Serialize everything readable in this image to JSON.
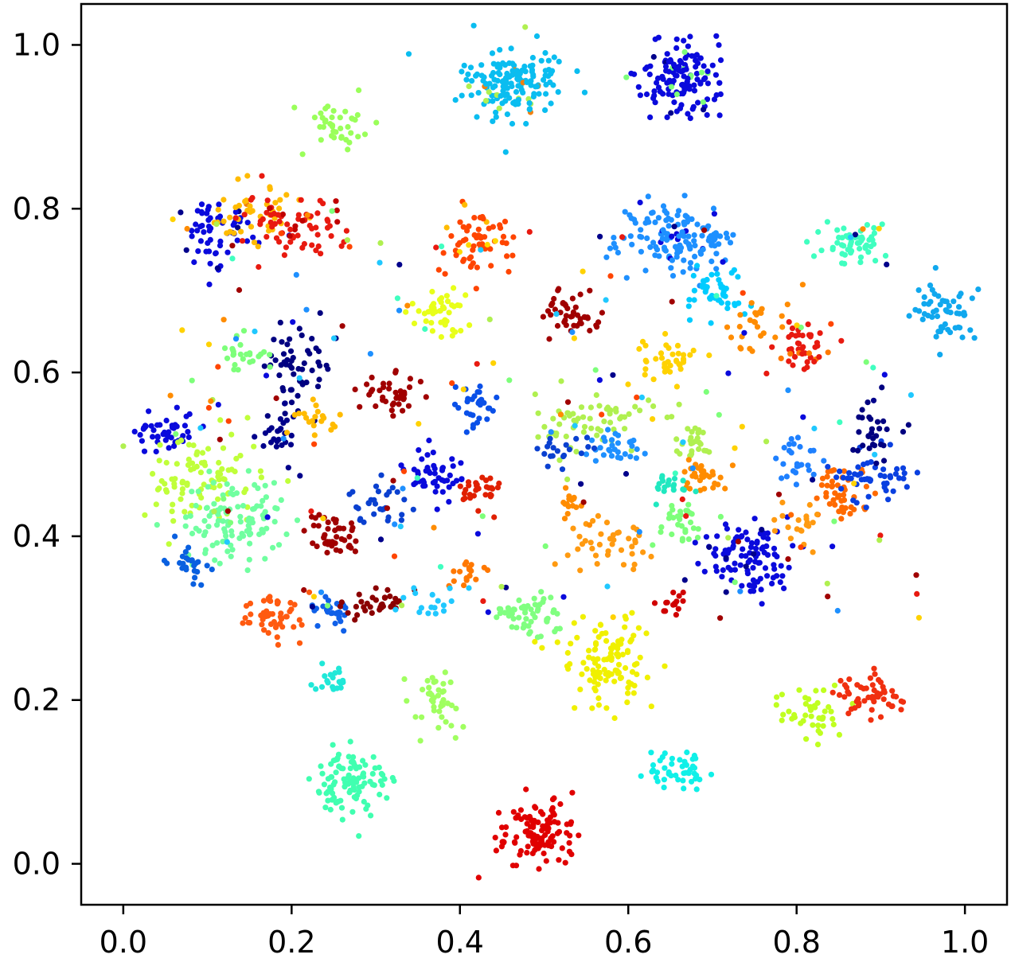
{
  "chart_data": {
    "type": "scatter",
    "title": "",
    "xlabel": "",
    "ylabel": "",
    "xlim": [
      -0.05,
      1.05
    ],
    "ylim": [
      -0.05,
      1.05
    ],
    "xticks": [
      "0.0",
      "0.2",
      "0.4",
      "0.6",
      "0.8",
      "1.0"
    ],
    "yticks": [
      "0.0",
      "0.2",
      "0.4",
      "0.6",
      "0.8",
      "1.0"
    ],
    "xtick_values": [
      0.0,
      0.2,
      0.4,
      0.6,
      0.8,
      1.0
    ],
    "ytick_values": [
      0.0,
      0.2,
      0.4,
      0.6,
      0.8,
      1.0
    ],
    "grid": false,
    "colormap": "jet",
    "clusters": [
      {
        "x": 0.465,
        "y": 0.958,
        "spread": [
          0.03,
          0.022
        ],
        "n": 160,
        "color": "#0abdf0",
        "noise": [
          "#f08010",
          "#b0f050"
        ]
      },
      {
        "x": 0.665,
        "y": 0.958,
        "spread": [
          0.025,
          0.02
        ],
        "n": 140,
        "color": "#0a0adc",
        "noise": [
          "#00008b",
          "#7dff7a"
        ]
      },
      {
        "x": 0.255,
        "y": 0.9,
        "spread": [
          0.018,
          0.016
        ],
        "n": 40,
        "color": "#9aff5a",
        "noise": []
      },
      {
        "x": 0.11,
        "y": 0.77,
        "spread": [
          0.025,
          0.022
        ],
        "n": 60,
        "color": "#0a0adc",
        "noise": [
          "#00008b"
        ]
      },
      {
        "x": 0.16,
        "y": 0.795,
        "spread": [
          0.03,
          0.015
        ],
        "n": 45,
        "color": "#ffbb00",
        "noise": [
          "#f08010"
        ]
      },
      {
        "x": 0.21,
        "y": 0.78,
        "spread": [
          0.03,
          0.02
        ],
        "n": 70,
        "color": "#e81a10",
        "noise": [
          "#c00000"
        ]
      },
      {
        "x": 0.42,
        "y": 0.762,
        "spread": [
          0.022,
          0.02
        ],
        "n": 65,
        "color": "#ff4500",
        "noise": [
          "#ffd800",
          "#ffbb00"
        ]
      },
      {
        "x": 0.66,
        "y": 0.762,
        "spread": [
          0.035,
          0.022
        ],
        "n": 140,
        "color": "#1e90ff",
        "noise": [
          "#0a0adc"
        ]
      },
      {
        "x": 0.705,
        "y": 0.7,
        "spread": [
          0.02,
          0.02
        ],
        "n": 45,
        "color": "#00ccff",
        "noise": []
      },
      {
        "x": 0.868,
        "y": 0.758,
        "spread": [
          0.022,
          0.012
        ],
        "n": 55,
        "color": "#40ffc0",
        "noise": []
      },
      {
        "x": 0.978,
        "y": 0.672,
        "spread": [
          0.02,
          0.018
        ],
        "n": 55,
        "color": "#10a8ee",
        "noise": []
      },
      {
        "x": 0.378,
        "y": 0.675,
        "spread": [
          0.018,
          0.015
        ],
        "n": 45,
        "color": "#e8ff1a",
        "noise": []
      },
      {
        "x": 0.535,
        "y": 0.67,
        "spread": [
          0.02,
          0.015
        ],
        "n": 45,
        "color": "#a00000",
        "noise": []
      },
      {
        "x": 0.805,
        "y": 0.632,
        "spread": [
          0.02,
          0.014
        ],
        "n": 45,
        "color": "#e81a10",
        "noise": [
          "#ff7800"
        ]
      },
      {
        "x": 0.75,
        "y": 0.66,
        "spread": [
          0.02,
          0.015
        ],
        "n": 25,
        "color": "#ff8c00",
        "noise": []
      },
      {
        "x": 0.648,
        "y": 0.615,
        "spread": [
          0.015,
          0.014
        ],
        "n": 40,
        "color": "#ffd200",
        "noise": []
      },
      {
        "x": 0.21,
        "y": 0.608,
        "spread": [
          0.022,
          0.025
        ],
        "n": 55,
        "color": "#000080",
        "noise": []
      },
      {
        "x": 0.14,
        "y": 0.622,
        "spread": [
          0.015,
          0.012
        ],
        "n": 25,
        "color": "#7dff7a",
        "noise": []
      },
      {
        "x": 0.32,
        "y": 0.572,
        "spread": [
          0.02,
          0.012
        ],
        "n": 40,
        "color": "#a00000",
        "noise": []
      },
      {
        "x": 0.415,
        "y": 0.56,
        "spread": [
          0.016,
          0.014
        ],
        "n": 30,
        "color": "#0a50e8",
        "noise": []
      },
      {
        "x": 0.05,
        "y": 0.53,
        "spread": [
          0.018,
          0.015
        ],
        "n": 45,
        "color": "#0a0adc",
        "noise": []
      },
      {
        "x": 0.185,
        "y": 0.52,
        "spread": [
          0.012,
          0.016
        ],
        "n": 25,
        "color": "#00008b",
        "noise": []
      },
      {
        "x": 0.23,
        "y": 0.545,
        "spread": [
          0.012,
          0.01
        ],
        "n": 20,
        "color": "#ffbb00",
        "noise": []
      },
      {
        "x": 0.095,
        "y": 0.47,
        "spread": [
          0.035,
          0.03
        ],
        "n": 90,
        "color": "#c0ff3a",
        "noise": []
      },
      {
        "x": 0.13,
        "y": 0.42,
        "spread": [
          0.03,
          0.025
        ],
        "n": 110,
        "color": "#70ffa0",
        "noise": []
      },
      {
        "x": 0.075,
        "y": 0.37,
        "spread": [
          0.012,
          0.012
        ],
        "n": 25,
        "color": "#0a60e0",
        "noise": []
      },
      {
        "x": 0.248,
        "y": 0.402,
        "spread": [
          0.016,
          0.014
        ],
        "n": 45,
        "color": "#a00000",
        "noise": []
      },
      {
        "x": 0.305,
        "y": 0.44,
        "spread": [
          0.018,
          0.012
        ],
        "n": 30,
        "color": "#0a40d0",
        "noise": []
      },
      {
        "x": 0.37,
        "y": 0.475,
        "spread": [
          0.02,
          0.018
        ],
        "n": 45,
        "color": "#0a0adc",
        "noise": []
      },
      {
        "x": 0.425,
        "y": 0.455,
        "spread": [
          0.012,
          0.012
        ],
        "n": 30,
        "color": "#e02000",
        "noise": []
      },
      {
        "x": 0.56,
        "y": 0.54,
        "spread": [
          0.035,
          0.018
        ],
        "n": 65,
        "color": "#b0f050",
        "noise": []
      },
      {
        "x": 0.585,
        "y": 0.51,
        "spread": [
          0.015,
          0.012
        ],
        "n": 30,
        "color": "#1e90ff",
        "noise": []
      },
      {
        "x": 0.52,
        "y": 0.505,
        "spread": [
          0.02,
          0.008
        ],
        "n": 20,
        "color": "#0a40d0",
        "noise": []
      },
      {
        "x": 0.68,
        "y": 0.515,
        "spread": [
          0.012,
          0.01
        ],
        "n": 25,
        "color": "#b0f050",
        "noise": []
      },
      {
        "x": 0.69,
        "y": 0.475,
        "spread": [
          0.014,
          0.01
        ],
        "n": 30,
        "color": "#ff8c00",
        "noise": []
      },
      {
        "x": 0.645,
        "y": 0.46,
        "spread": [
          0.018,
          0.008
        ],
        "n": 20,
        "color": "#20e8c0",
        "noise": []
      },
      {
        "x": 0.66,
        "y": 0.415,
        "spread": [
          0.018,
          0.015
        ],
        "n": 30,
        "color": "#7dff7a",
        "noise": []
      },
      {
        "x": 0.53,
        "y": 0.44,
        "spread": [
          0.01,
          0.008
        ],
        "n": 15,
        "color": "#ff8c00",
        "noise": []
      },
      {
        "x": 0.58,
        "y": 0.392,
        "spread": [
          0.025,
          0.015
        ],
        "n": 40,
        "color": "#ff9a10",
        "noise": []
      },
      {
        "x": 0.745,
        "y": 0.375,
        "spread": [
          0.03,
          0.025
        ],
        "n": 110,
        "color": "#0a0adc",
        "noise": [
          "#00008b"
        ]
      },
      {
        "x": 0.8,
        "y": 0.495,
        "spread": [
          0.012,
          0.015
        ],
        "n": 25,
        "color": "#1e80ff",
        "noise": []
      },
      {
        "x": 0.85,
        "y": 0.45,
        "spread": [
          0.02,
          0.015
        ],
        "n": 45,
        "color": "#ff6a00",
        "noise": []
      },
      {
        "x": 0.89,
        "y": 0.47,
        "spread": [
          0.022,
          0.02
        ],
        "n": 50,
        "color": "#0a40e0",
        "noise": []
      },
      {
        "x": 0.89,
        "y": 0.525,
        "spread": [
          0.015,
          0.018
        ],
        "n": 30,
        "color": "#000080",
        "noise": []
      },
      {
        "x": 0.8,
        "y": 0.41,
        "spread": [
          0.015,
          0.012
        ],
        "n": 20,
        "color": "#ff9a10",
        "noise": []
      },
      {
        "x": 0.41,
        "y": 0.355,
        "spread": [
          0.01,
          0.008
        ],
        "n": 20,
        "color": "#ff7800",
        "noise": []
      },
      {
        "x": 0.175,
        "y": 0.305,
        "spread": [
          0.022,
          0.014
        ],
        "n": 50,
        "color": "#ff5a10",
        "noise": []
      },
      {
        "x": 0.25,
        "y": 0.31,
        "spread": [
          0.014,
          0.01
        ],
        "n": 30,
        "color": "#1060e8",
        "noise": []
      },
      {
        "x": 0.31,
        "y": 0.318,
        "spread": [
          0.025,
          0.008
        ],
        "n": 35,
        "color": "#8b0000",
        "noise": []
      },
      {
        "x": 0.36,
        "y": 0.32,
        "spread": [
          0.015,
          0.008
        ],
        "n": 15,
        "color": "#20c8ff",
        "noise": []
      },
      {
        "x": 0.48,
        "y": 0.302,
        "spread": [
          0.02,
          0.014
        ],
        "n": 55,
        "color": "#80ff80",
        "noise": []
      },
      {
        "x": 0.575,
        "y": 0.248,
        "spread": [
          0.03,
          0.025
        ],
        "n": 110,
        "color": "#f0f000",
        "noise": []
      },
      {
        "x": 0.655,
        "y": 0.32,
        "spread": [
          0.01,
          0.008
        ],
        "n": 15,
        "color": "#d00000",
        "noise": []
      },
      {
        "x": 0.245,
        "y": 0.222,
        "spread": [
          0.01,
          0.01
        ],
        "n": 20,
        "color": "#20e8d8",
        "noise": []
      },
      {
        "x": 0.37,
        "y": 0.205,
        "spread": [
          0.014,
          0.018
        ],
        "n": 40,
        "color": "#a0ff60",
        "noise": []
      },
      {
        "x": 0.815,
        "y": 0.182,
        "spread": [
          0.018,
          0.015
        ],
        "n": 45,
        "color": "#c0ff20",
        "noise": []
      },
      {
        "x": 0.89,
        "y": 0.21,
        "spread": [
          0.018,
          0.014
        ],
        "n": 55,
        "color": "#f03010",
        "noise": []
      },
      {
        "x": 0.268,
        "y": 0.1,
        "spread": [
          0.025,
          0.02
        ],
        "n": 100,
        "color": "#40ffb0",
        "noise": []
      },
      {
        "x": 0.658,
        "y": 0.112,
        "spread": [
          0.018,
          0.012
        ],
        "n": 45,
        "color": "#10f0e8",
        "noise": []
      },
      {
        "x": 0.49,
        "y": 0.04,
        "spread": [
          0.022,
          0.022
        ],
        "n": 110,
        "color": "#e00000",
        "noise": []
      }
    ],
    "stray_colors": [
      "#0a0adc",
      "#00008b",
      "#ff4500",
      "#e81a10",
      "#7dff7a",
      "#ffd200",
      "#1e90ff",
      "#a00000",
      "#b0f050",
      "#ff8c00",
      "#20c8ff",
      "#40ffc0"
    ]
  }
}
